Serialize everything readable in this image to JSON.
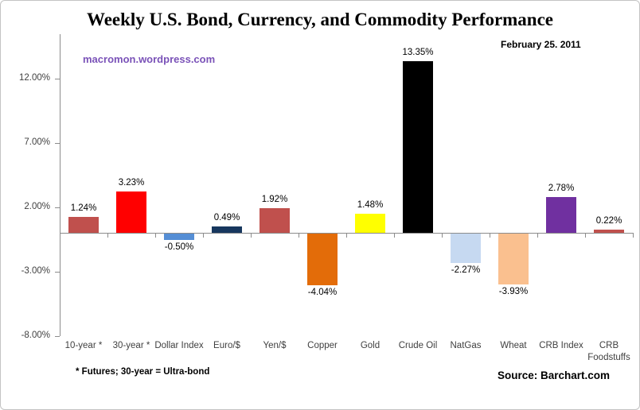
{
  "header": {
    "title": "Weekly U.S. Bond, Currency, and Commodity Performance",
    "date": "February 25. 2011",
    "watermark": "macromon.wordpress.com"
  },
  "footer": {
    "footnote": "* Futures; 30-year = Ultra-bond",
    "source": "Source:  Barchart.com"
  },
  "colors": {
    "axis": "#8c8c8c",
    "watermark_purple": "#7a52b8",
    "background": "#ffffff"
  },
  "chart_data": {
    "type": "bar",
    "title": "Weekly U.S. Bond, Currency, and Commodity Performance",
    "subtitle": "February 25. 2011",
    "xlabel": "",
    "ylabel": "",
    "grid": false,
    "legend": false,
    "ylim": [
      -8,
      15.4
    ],
    "categories": [
      "10-year *",
      "30-year *",
      "Dollar Index",
      "Euro/$",
      "Yen/$",
      "Copper",
      "Gold",
      "Crude Oil",
      "NatGas",
      "Wheat",
      "CRB Index",
      "CRB Foodstuffs"
    ],
    "values": [
      1.24,
      3.23,
      -0.5,
      0.49,
      1.92,
      -4.04,
      1.48,
      13.35,
      -2.27,
      -3.93,
      2.78,
      0.22
    ],
    "value_labels": [
      "1.24%",
      "3.23%",
      "-0.50%",
      "0.49%",
      "1.92%",
      "-4.04%",
      "1.48%",
      "13.35%",
      "-2.27%",
      "-3.93%",
      "2.78%",
      "0.22%"
    ],
    "bar_colors": [
      "#c0504d",
      "#ff0000",
      "#558ed5",
      "#17375e",
      "#c0504d",
      "#e36c09",
      "#ffff00",
      "#000000",
      "#c6d9f1",
      "#fac08f",
      "#7030a0",
      "#c0504d"
    ],
    "y_ticks": [
      {
        "label": "12.00%",
        "value": 12
      },
      {
        "label": "7.00%",
        "value": 7
      },
      {
        "label": "2.00%",
        "value": 2
      },
      {
        "label": "-3.00%",
        "value": -3
      },
      {
        "label": "-8.00%",
        "value": -8
      }
    ]
  }
}
